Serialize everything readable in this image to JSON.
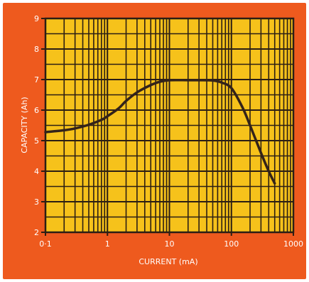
{
  "colors": {
    "panel": "#ee5a1e",
    "plot_area": "#f6c21b",
    "grid": "#2b1e14",
    "curve": "#33231a",
    "text": "#ffffff"
  },
  "chart_data": {
    "type": "line",
    "title": "",
    "xlabel": "CURRENT (mA)",
    "ylabel": "CAPACITY (Ah)",
    "x_scale": "log",
    "xlim": [
      0.1,
      1000
    ],
    "ylim": [
      2,
      9
    ],
    "grid": true,
    "x_ticks": [
      0.1,
      1,
      10,
      100,
      1000
    ],
    "x_tick_labels": [
      "0·1",
      "1",
      "10",
      "100",
      "1000"
    ],
    "y_ticks": [
      2,
      3,
      4,
      5,
      6,
      7,
      8,
      9
    ],
    "y_tick_labels": [
      "2",
      "3",
      "4",
      "5",
      "6",
      "7",
      "8",
      "9"
    ],
    "series": [
      {
        "x": [
          0.1,
          0.2,
          0.3,
          0.5,
          0.8,
          1,
          1.5,
          2,
          3,
          5,
          7,
          10,
          20,
          30,
          50,
          70,
          100,
          150,
          200,
          300,
          400,
          500
        ],
        "y": [
          5.28,
          5.34,
          5.4,
          5.52,
          5.68,
          5.8,
          6.05,
          6.3,
          6.58,
          6.82,
          6.93,
          6.98,
          6.98,
          6.98,
          6.97,
          6.9,
          6.72,
          6.1,
          5.5,
          4.6,
          4.0,
          3.6
        ]
      }
    ]
  }
}
